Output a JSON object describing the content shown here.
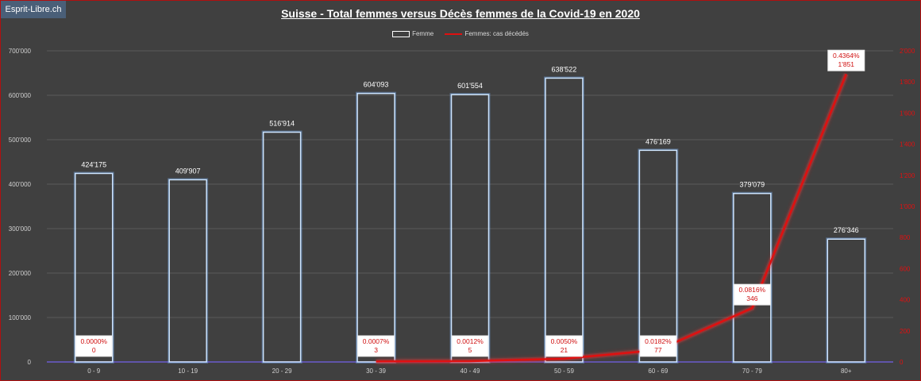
{
  "brand": "Esprit-Libre.ch",
  "chart_data": {
    "type": "bar",
    "title": "Suisse - Total femmes versus Décès femmes de la Covid-19 en 2020",
    "categories": [
      "0 - 9",
      "10 - 19",
      "20 - 29",
      "30 - 39",
      "40 - 49",
      "50 - 59",
      "60 - 69",
      "70 - 79",
      "80+"
    ],
    "legend_position": "top-center",
    "grid": true,
    "y_axis_left": {
      "ylim": [
        0,
        700000
      ],
      "ticks": [
        {
          "value": 0,
          "label": "0"
        },
        {
          "value": 100000,
          "label": "100'000"
        },
        {
          "value": 200000,
          "label": "200'000"
        },
        {
          "value": 300000,
          "label": "300'000"
        },
        {
          "value": 400000,
          "label": "400'000"
        },
        {
          "value": 500000,
          "label": "500'000"
        },
        {
          "value": 600000,
          "label": "600'000"
        },
        {
          "value": 700000,
          "label": "700'000"
        }
      ]
    },
    "y_axis_right": {
      "ylim": [
        0,
        2000
      ],
      "color": "#e01010",
      "ticks": [
        {
          "value": 0,
          "label": "0"
        },
        {
          "value": 200,
          "label": "200"
        },
        {
          "value": 400,
          "label": "400"
        },
        {
          "value": 600,
          "label": "600"
        },
        {
          "value": 800,
          "label": "800"
        },
        {
          "value": 1000,
          "label": "1'000"
        },
        {
          "value": 1200,
          "label": "1'200"
        },
        {
          "value": 1400,
          "label": "1'400"
        },
        {
          "value": 1600,
          "label": "1'600"
        },
        {
          "value": 1800,
          "label": "1'800"
        },
        {
          "value": 2000,
          "label": "2'000"
        }
      ]
    },
    "series": [
      {
        "name": "Femme",
        "type": "bar",
        "axis": "left",
        "color": "#ffffff",
        "values": [
          424175,
          409907,
          516914,
          604093,
          601554,
          638522,
          476169,
          379079,
          276346
        ],
        "labels": [
          "424'175",
          "409'907",
          "516'914",
          "604'093",
          "601'554",
          "638'522",
          "476'169",
          "379'079",
          "276'346"
        ]
      },
      {
        "name": "Femmes: cas décédés",
        "type": "line",
        "axis": "right",
        "color": "#e01010",
        "values": [
          0,
          0,
          0,
          3,
          5,
          21,
          77,
          346,
          1851
        ],
        "labels": [
          "0",
          "",
          "",
          "3",
          "5",
          "21",
          "77",
          "346",
          "1'851"
        ],
        "pct_labels": [
          "0.0000%",
          "",
          "",
          "0.0007%",
          "0.0012%",
          "0.0050%",
          "0.0182%",
          "0.0816%",
          "0.4364%"
        ]
      }
    ]
  }
}
